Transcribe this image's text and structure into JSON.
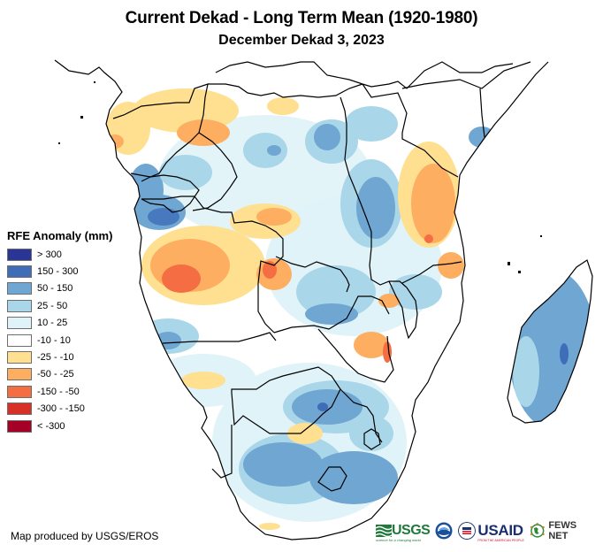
{
  "header": {
    "title": "Current Dekad - Long Term Mean (1920-1980)",
    "subtitle": "December Dekad 3, 2023"
  },
  "legend": {
    "title": "RFE Anomaly (mm)",
    "items": [
      {
        "label": "> 300",
        "color": "#2b3595"
      },
      {
        "label": "150 - 300",
        "color": "#3f6db8"
      },
      {
        "label": "50 - 150",
        "color": "#6fa6d2"
      },
      {
        "label": "25 - 50",
        "color": "#a9d6e8"
      },
      {
        "label": "10 - 25",
        "color": "#e0f3f8"
      },
      {
        "label": "-10 - 10",
        "color": "#ffffff"
      },
      {
        "label": "-25 - -10",
        "color": "#fee090"
      },
      {
        "label": "-50 - -25",
        "color": "#fdae61"
      },
      {
        "label": "-150 - -50",
        "color": "#f46d43"
      },
      {
        "label": "-300 - -150",
        "color": "#d73027"
      },
      {
        "label": "< -300",
        "color": "#a50026"
      }
    ]
  },
  "footer": {
    "credit": "Map produced by USGS/EROS",
    "logos": {
      "usgs": "USGS",
      "usgs_tagline": "science for a changing world",
      "usaid": "USAID",
      "usaid_tagline": "FROM THE AMERICAN PEOPLE",
      "fews": "FEWS NET"
    }
  }
}
